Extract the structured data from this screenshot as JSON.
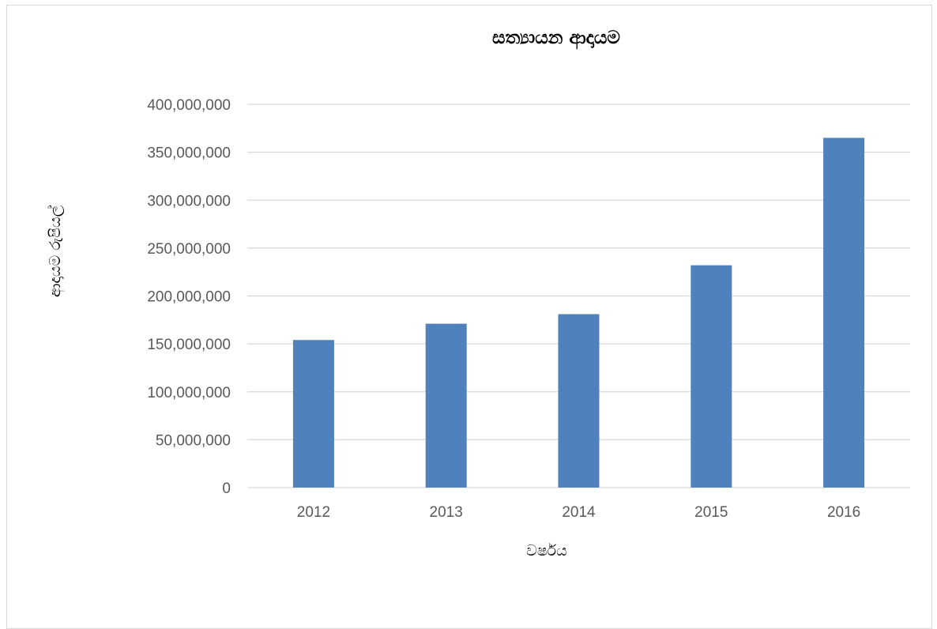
{
  "chart_data": {
    "type": "bar",
    "title": "සත්‍යායන ආදායම",
    "xlabel": "වර්ෂය",
    "ylabel": "ආදායම රුපියල්",
    "categories": [
      "2012",
      "2013",
      "2014",
      "2015",
      "2016"
    ],
    "values": [
      154000000,
      171000000,
      181000000,
      232000000,
      365000000
    ],
    "ylim": [
      0,
      400000000
    ],
    "yticks": [
      "0",
      "50,000,000",
      "100,000,000",
      "150,000,000",
      "200,000,000",
      "250,000,000",
      "300,000,000",
      "350,000,000",
      "400,000,000"
    ],
    "grid": true,
    "legend": "none",
    "bar_color": "#4f81bd"
  }
}
